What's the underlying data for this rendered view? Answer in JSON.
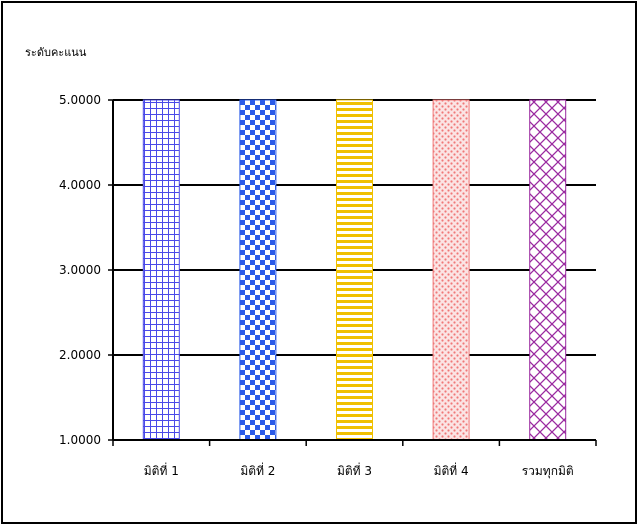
{
  "chart_data": {
    "type": "bar",
    "ylabel": "ระดับคะแนน",
    "categories": [
      "มิติที่ 1",
      "มิติที่ 2",
      "มิติที่ 3",
      "มิติที่ 4",
      "รวมทุกมิติ"
    ],
    "values": [
      5.0,
      5.0,
      5.0,
      5.0,
      5.0
    ],
    "ylim": [
      1.0,
      5.0
    ],
    "yticks": [
      "1.0000",
      "2.0000",
      "3.0000",
      "4.0000",
      "5.0000"
    ],
    "grid": true,
    "legend": "none",
    "bar_colors": [
      "#4a4ae8",
      "#2a5ae8",
      "#f0c000",
      "#f07878",
      "#9a2aa0"
    ],
    "bar_patterns": [
      "grid",
      "checker",
      "horizontal-stripes",
      "dots",
      "crosshatch"
    ]
  }
}
